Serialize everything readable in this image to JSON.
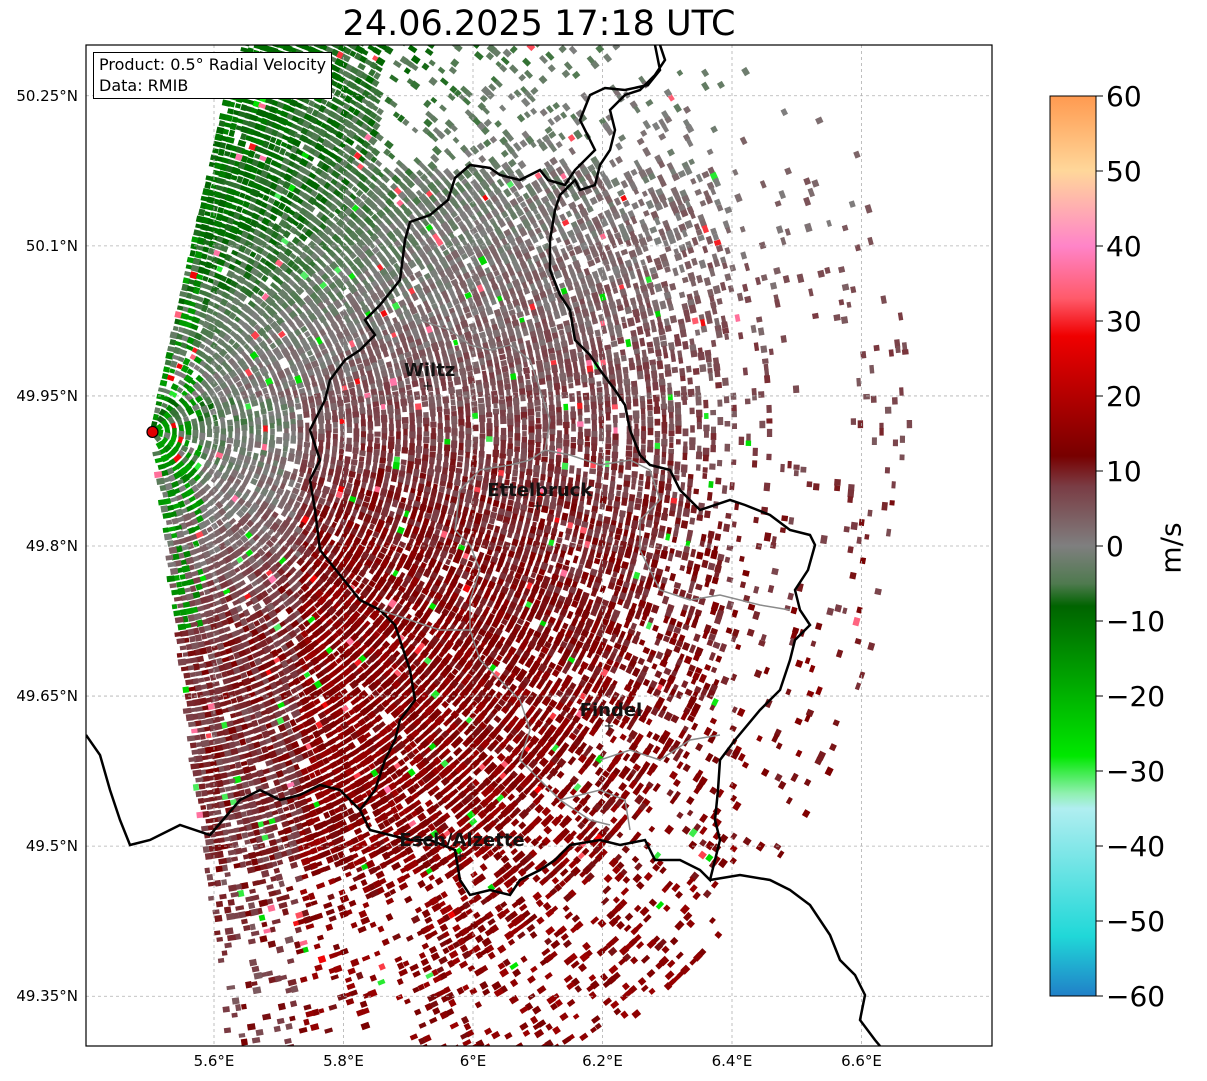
{
  "title": "24.06.2025 17:18 UTC",
  "info": {
    "product": "Product: 0.5° Radial Velocity",
    "source": "Data: RMIB"
  },
  "map": {
    "lon_range": [
      5.4,
      6.8
    ],
    "lat_range": [
      49.3,
      50.3
    ],
    "lon_ticks": [
      {
        "value": 5.6,
        "label": "5.6°E"
      },
      {
        "value": 5.8,
        "label": "5.8°E"
      },
      {
        "value": 6.0,
        "label": "6°E"
      },
      {
        "value": 6.2,
        "label": "6.2°E"
      },
      {
        "value": 6.4,
        "label": "6.4°E"
      },
      {
        "value": 6.6,
        "label": "6.6°E"
      }
    ],
    "lat_ticks": [
      {
        "value": 50.25,
        "label": "50.25°N"
      },
      {
        "value": 50.1,
        "label": "50.1°N"
      },
      {
        "value": 49.95,
        "label": "49.95°N"
      },
      {
        "value": 49.8,
        "label": "49.8°N"
      },
      {
        "value": 49.65,
        "label": "49.65°N"
      },
      {
        "value": 49.5,
        "label": "49.5°N"
      },
      {
        "value": 49.35,
        "label": "49.35°N"
      }
    ],
    "grid": true,
    "radar_site": {
      "lon": 5.505,
      "lat": 49.914
    },
    "places": [
      {
        "name": "Wiltz",
        "lon": 5.93,
        "lat": 49.97
      },
      {
        "name": "Ettelbruck",
        "lon": 6.1,
        "lat": 49.85
      },
      {
        "name": "Findel",
        "lon": 6.21,
        "lat": 49.63
      },
      {
        "name": "Esch/Alzette",
        "lon": 5.98,
        "lat": 49.5
      }
    ]
  },
  "colorbar": {
    "label": "m/s",
    "min": -60,
    "max": 60,
    "ticks": [
      60,
      50,
      40,
      30,
      20,
      10,
      0,
      -10,
      -20,
      -30,
      -40,
      -50,
      -60
    ],
    "stops": [
      {
        "value": 60,
        "color": "#ff9a50"
      },
      {
        "value": 50,
        "color": "#ffd79a"
      },
      {
        "value": 40,
        "color": "#ff84c8"
      },
      {
        "value": 33,
        "color": "#ff5a6a"
      },
      {
        "value": 28,
        "color": "#f00000"
      },
      {
        "value": 12,
        "color": "#780000"
      },
      {
        "value": 8,
        "color": "#7a3c44"
      },
      {
        "value": 0,
        "color": "#7f7f7f"
      },
      {
        "value": -5,
        "color": "#4f7a4f"
      },
      {
        "value": -8,
        "color": "#006400"
      },
      {
        "value": -28,
        "color": "#00e800"
      },
      {
        "value": -33,
        "color": "#90f0b0"
      },
      {
        "value": -35,
        "color": "#b0eef0"
      },
      {
        "value": -52,
        "color": "#20d8d8"
      },
      {
        "value": -60,
        "color": "#2080c8"
      }
    ]
  }
}
